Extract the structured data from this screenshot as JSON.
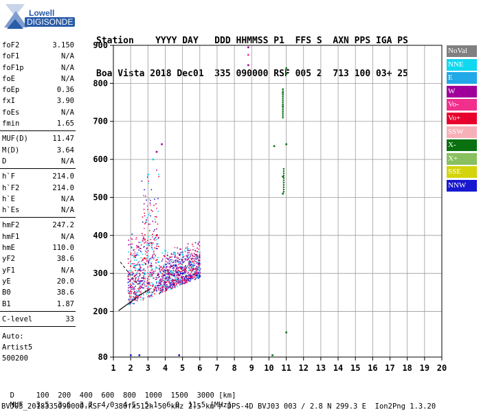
{
  "logo": {
    "brand": "Lowell",
    "product": "DIGISONDE"
  },
  "header": {
    "labels": "Station    YYYY DAY   DDD HHMMSS P1  FFS S  AXN PPS IGA PS",
    "values": "Boa Vista 2018 Dec01  335 090000 RSF 005 2  713 100 03+ 25"
  },
  "parameters": [
    [
      {
        "name": "foF2",
        "value": "3.150"
      },
      {
        "name": "foF1",
        "value": "N/A"
      },
      {
        "name": "foF1p",
        "value": "N/A"
      },
      {
        "name": "foE",
        "value": "N/A"
      },
      {
        "name": "foEp",
        "value": "0.36"
      },
      {
        "name": "fxI",
        "value": "3.90"
      },
      {
        "name": "foEs",
        "value": "N/A"
      },
      {
        "name": "fmin",
        "value": "1.65"
      }
    ],
    [
      {
        "name": "MUF(D)",
        "value": "11.47"
      },
      {
        "name": "M(D)",
        "value": "3.64"
      },
      {
        "name": "D",
        "value": "N/A"
      }
    ],
    [
      {
        "name": "h`F",
        "value": "214.0"
      },
      {
        "name": "h`F2",
        "value": "214.0"
      },
      {
        "name": "h`E",
        "value": "N/A"
      },
      {
        "name": "h`Es",
        "value": "N/A"
      }
    ],
    [
      {
        "name": "hmF2",
        "value": "247.2"
      },
      {
        "name": "hmF1",
        "value": "N/A"
      },
      {
        "name": "hmE",
        "value": "110.0"
      },
      {
        "name": "yF2",
        "value": "38.6"
      },
      {
        "name": "yF1",
        "value": "N/A"
      },
      {
        "name": "yE",
        "value": "20.0"
      },
      {
        "name": "B0",
        "value": "38.6"
      },
      {
        "name": "B1",
        "value": "1.87"
      }
    ],
    [
      {
        "name": "C-level",
        "value": "33"
      }
    ]
  ],
  "auto": {
    "line1": "Auto:",
    "line2": "Artist5",
    "line3": "500200"
  },
  "legend": [
    {
      "label": "NoVal",
      "color": "#808080"
    },
    {
      "label": "NNE",
      "color": "#10d8f0"
    },
    {
      "label": "E",
      "color": "#20a8e8"
    },
    {
      "label": "W",
      "color": "#a0009a"
    },
    {
      "label": "Vo-",
      "color": "#f0308c"
    },
    {
      "label": "Vo+",
      "color": "#e8002c"
    },
    {
      "label": "SSW",
      "color": "#f8b0b8"
    },
    {
      "label": "X-",
      "color": "#0a7010"
    },
    {
      "label": "X+",
      "color": "#88c060"
    },
    {
      "label": "SSE",
      "color": "#d4d40c"
    },
    {
      "label": "NNW",
      "color": "#1818d0"
    }
  ],
  "chart_data": {
    "type": "scatter",
    "title": "",
    "xlabel": "",
    "ylabel": "",
    "xlim": [
      1,
      20
    ],
    "ylim": [
      80,
      900
    ],
    "x_ticks": [
      1,
      2,
      3,
      4,
      5,
      6,
      7,
      8,
      9,
      10,
      11,
      12,
      13,
      14,
      15,
      16,
      17,
      18,
      19,
      20
    ],
    "y_ticks": [
      80,
      200,
      300,
      400,
      500,
      600,
      700,
      800,
      900
    ],
    "grid": true,
    "legend_position": "right",
    "series": [
      {
        "name": "NNE",
        "color": "#10d8f0",
        "points": [
          [
            3.0,
            560
          ],
          [
            3.3,
            600
          ],
          [
            4.0,
            360
          ],
          [
            4.5,
            355
          ],
          [
            5.0,
            350
          ],
          [
            5.3,
            365
          ],
          [
            3.6,
            330
          ],
          [
            2.2,
            320
          ]
        ]
      },
      {
        "name": "W",
        "color": "#a0009a",
        "points": [
          [
            3.5,
            620
          ],
          [
            3.8,
            640
          ],
          [
            4.2,
            300
          ],
          [
            4.8,
            295
          ],
          [
            5.5,
            292
          ],
          [
            8.8,
            895
          ],
          [
            8.8,
            848
          ],
          [
            3.2,
            320
          ],
          [
            2.6,
            280
          ]
        ]
      },
      {
        "name": "Vo-",
        "color": "#f0308c",
        "points": [
          [
            8.8,
            875
          ],
          [
            3.0,
            260
          ],
          [
            2.4,
            240
          ]
        ]
      },
      {
        "name": "Vo+",
        "color": "#e8002c",
        "points": [
          [
            3.5,
            400
          ],
          [
            3.2,
            380
          ],
          [
            2.8,
            340
          ]
        ]
      },
      {
        "name": "X-",
        "color": "#0a7010",
        "points": [
          [
            10.2,
            85
          ],
          [
            10.3,
            635
          ],
          [
            10.8,
            510
          ],
          [
            10.8,
            555
          ],
          [
            10.8,
            740
          ],
          [
            10.8,
            775
          ],
          [
            11.0,
            840
          ],
          [
            11.0,
            825
          ],
          [
            11.0,
            640
          ],
          [
            11.0,
            145
          ]
        ]
      },
      {
        "name": "NNW",
        "color": "#1818d0",
        "points": [
          [
            5.0,
            300
          ],
          [
            5.8,
            295
          ],
          [
            6.0,
            293
          ],
          [
            4.6,
            320
          ],
          [
            2.0,
            85
          ],
          [
            2.5,
            85
          ],
          [
            4.8,
            85
          ]
        ]
      }
    ]
  },
  "footer": {
    "d_label": "D",
    "d_values": "100  200  400  600  800  1000  1500  3000 [km]",
    "muf_label": "MUF",
    "muf_values": "3.5  3.6  3.7  4.0  4.5  5.1  6.8  11.5 [MHz]",
    "file_info": "BVJ03_2018335090000.RSF / 380fx512h 50 kHz 2.5 km / DPS-4D BVJ03 003 / 2.8 N 299.3 E  Ion2Png 1.3.20"
  }
}
